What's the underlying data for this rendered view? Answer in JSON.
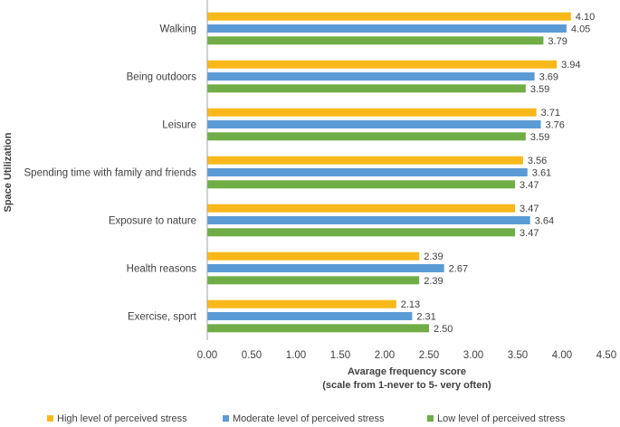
{
  "chart_data": {
    "type": "bar",
    "orientation": "horizontal",
    "categories": [
      "Walking",
      "Being outdoors",
      "Leisure",
      "Spending time with family and friends",
      "Exposure to nature",
      "Health reasons",
      "Exercise, sport"
    ],
    "series": [
      {
        "name": "High level of perceived stress",
        "color": "#f9b81a",
        "values": [
          4.1,
          3.94,
          3.71,
          3.56,
          3.47,
          2.39,
          2.13
        ],
        "labels": [
          "4.10",
          "3.94",
          "3.71",
          "3.56",
          "3.47",
          "2.39",
          "2.13"
        ]
      },
      {
        "name": "Moderate level of perceived stress",
        "color": "#5b9bd5",
        "values": [
          4.05,
          3.69,
          3.76,
          3.61,
          3.64,
          2.67,
          2.31
        ],
        "labels": [
          "4.05",
          "3.69",
          "3.76",
          "3.61",
          "3.64",
          "2.67",
          "2.31"
        ]
      },
      {
        "name": "Low level of perceived stress",
        "color": "#70ad47",
        "values": [
          3.79,
          3.59,
          3.59,
          3.47,
          3.47,
          2.39,
          2.5
        ],
        "labels": [
          "3.79",
          "3.59",
          "3.59",
          "3.47",
          "3.47",
          "2.39",
          "2.50"
        ]
      }
    ],
    "xlim": [
      0,
      4.5
    ],
    "xticks": [
      "0.00",
      "0.50",
      "1.00",
      "1.50",
      "2.00",
      "2.50",
      "3.00",
      "3.50",
      "4.00",
      "4.50"
    ],
    "xlabel_line1": "Avarage frequency score",
    "xlabel_line2": "(scale from 1-never to 5- very often)",
    "ylabel": "Space Utilization",
    "legend_position": "bottom"
  }
}
